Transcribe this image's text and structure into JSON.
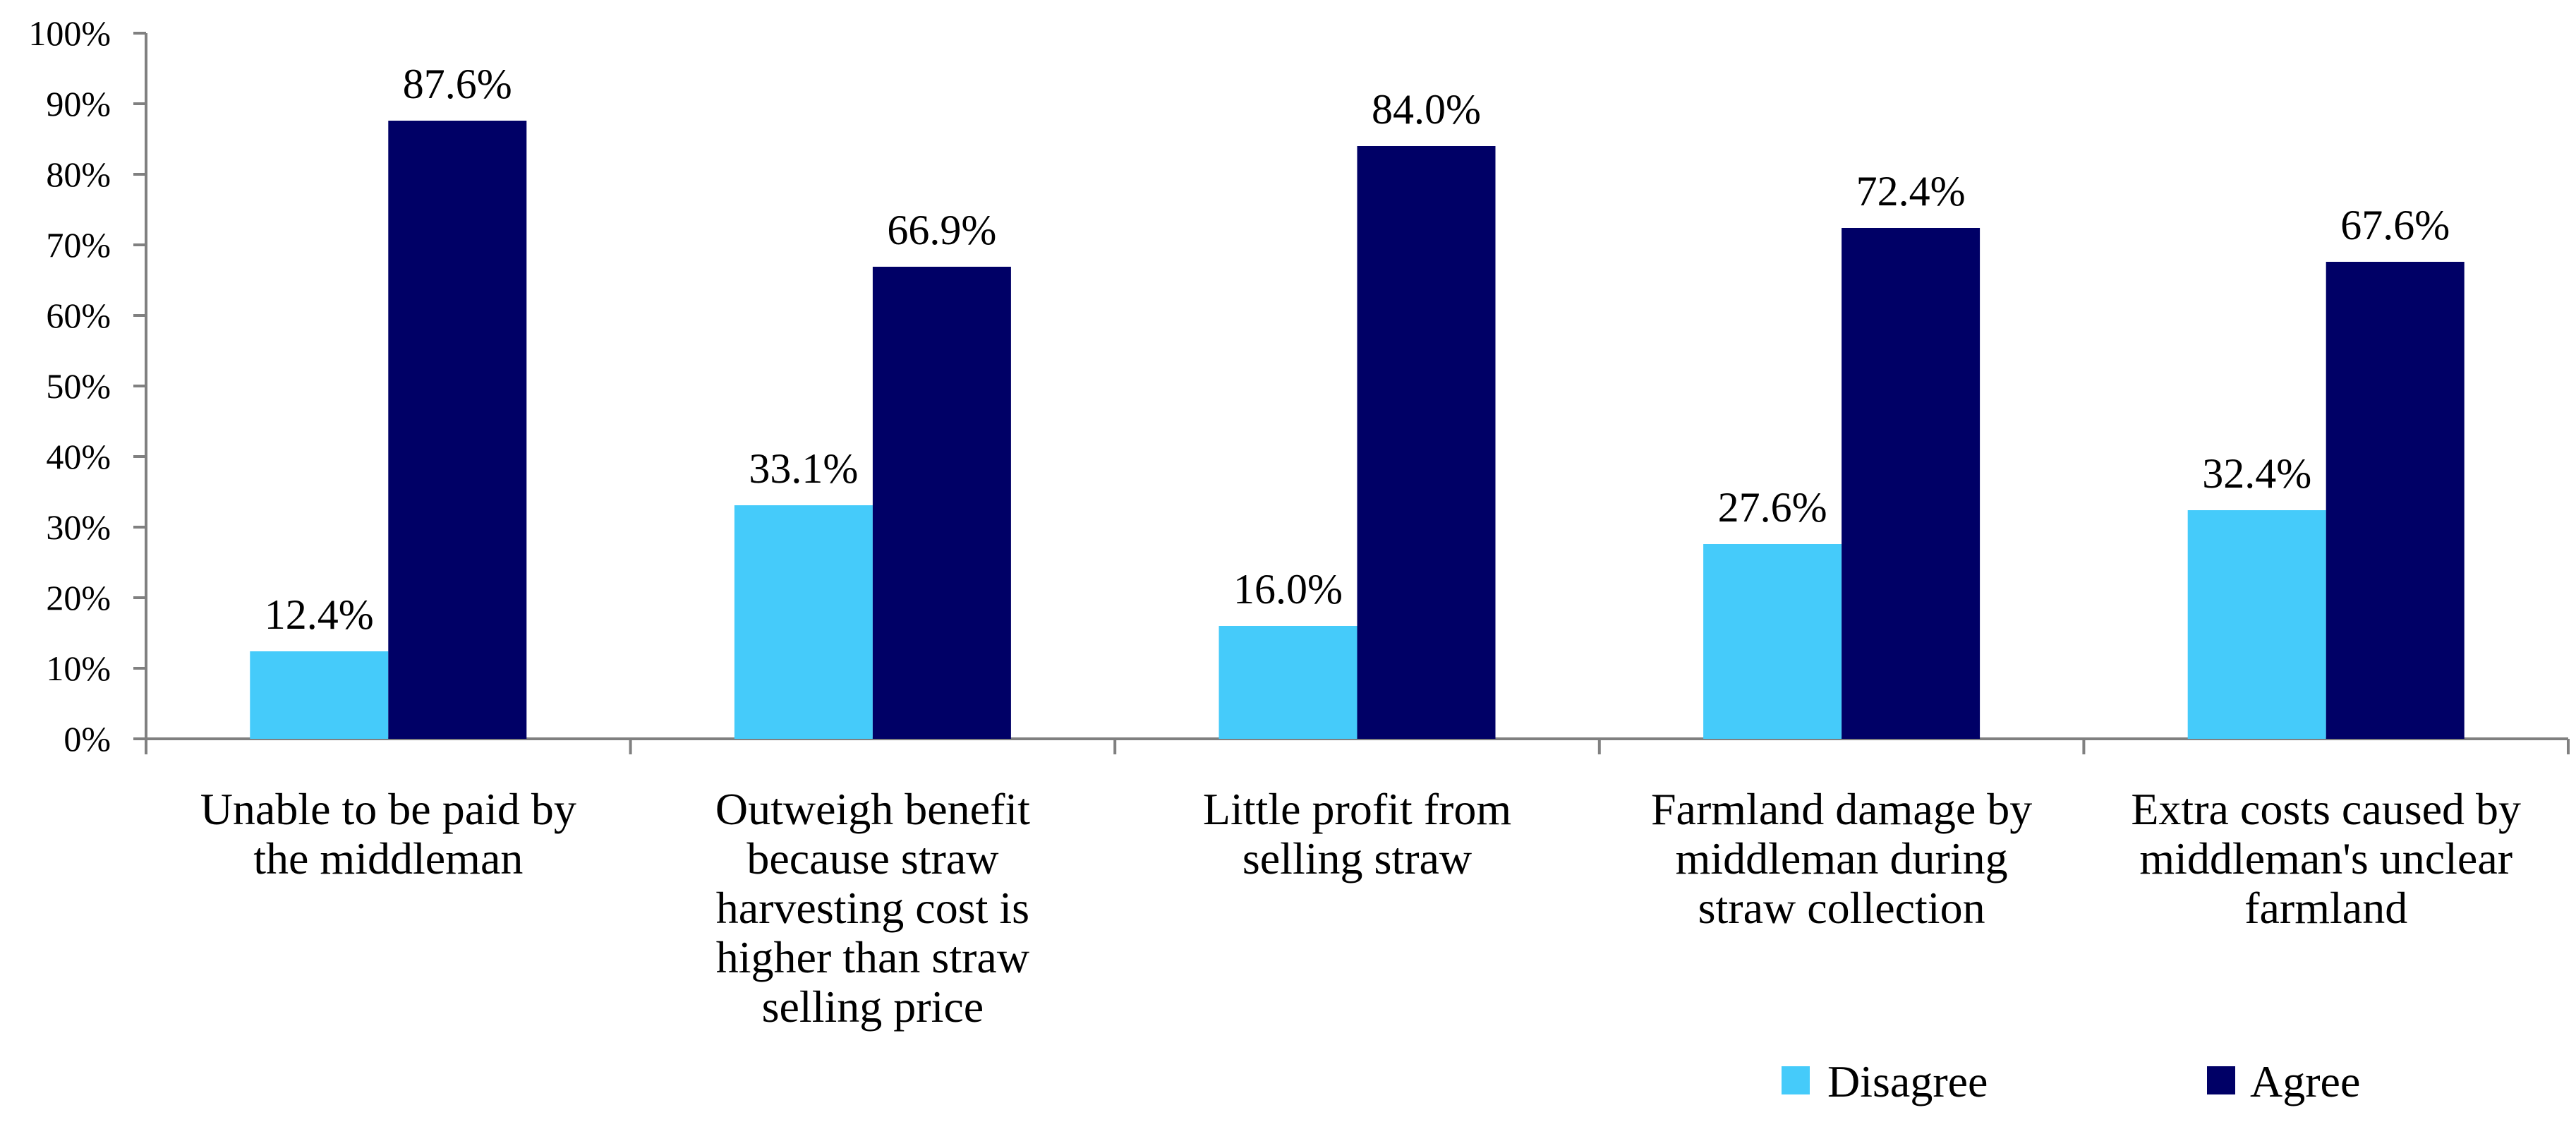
{
  "chart_data": {
    "type": "bar",
    "title": "",
    "xlabel": "",
    "ylabel": "",
    "ylim": [
      0,
      100
    ],
    "y_ticks": [
      "0%",
      "10%",
      "20%",
      "30%",
      "40%",
      "50%",
      "60%",
      "70%",
      "80%",
      "90%",
      "100%"
    ],
    "categories": [
      [
        "Unable to be paid by",
        "the middleman"
      ],
      [
        "Outweigh benefit",
        "because straw",
        "harvesting cost is",
        "higher than straw",
        "selling price"
      ],
      [
        "Little profit from",
        "selling straw"
      ],
      [
        "Farmland damage by",
        "middleman during",
        "straw collection"
      ],
      [
        "Extra costs caused by",
        "middleman's unclear",
        "farmland"
      ]
    ],
    "series": [
      {
        "name": "Disagree",
        "color": "#45CBFA",
        "values": [
          12.4,
          33.1,
          16.0,
          27.6,
          32.4
        ],
        "labels": [
          "12.4%",
          "33.1%",
          "16.0%",
          "27.6%",
          "32.4%"
        ]
      },
      {
        "name": "Agree",
        "color": "#000066",
        "values": [
          87.6,
          66.9,
          84.0,
          72.4,
          67.6
        ],
        "labels": [
          "87.6%",
          "66.9%",
          "84.0%",
          "72.4%",
          "67.6%"
        ]
      }
    ],
    "legend": {
      "position": "bottom-right"
    },
    "grid": false
  }
}
